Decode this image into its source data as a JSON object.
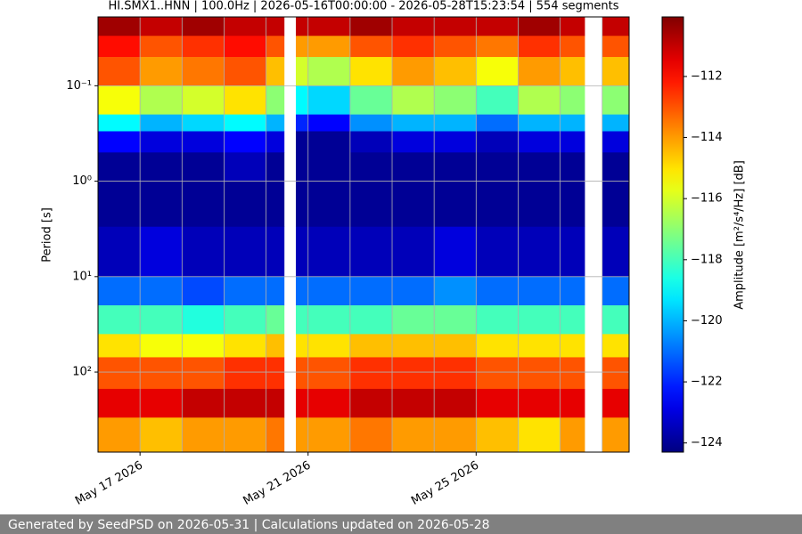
{
  "chart_data": {
    "type": "spectrogram",
    "title": "HI.SMX1..HNN | 100.0Hz | 2026-05-16T00:00:00 - 2026-05-28T15:23:54 | 554 segments",
    "ylabel": "Period [s]",
    "colorbar_label": "Amplitude [m²/s⁴/Hz] [dB]",
    "footer": "Generated by SeedPSD on 2026-05-31 | Calculations updated on 2026-05-28",
    "colormap": "jet",
    "x": [
      "2026-05-16T00:00:00",
      "2026-05-17T00:00:00",
      "2026-05-18T00:00:00",
      "2026-05-19T00:00:00",
      "2026-05-20T00:00:00",
      "2026-05-20T10:20:00",
      "2026-05-20T17:00:00",
      "2026-05-21T00:00:00",
      "2026-05-22T00:00:00",
      "2026-05-23T00:00:00",
      "2026-05-24T00:00:00",
      "2026-05-25T00:00:00",
      "2026-05-26T00:00:00",
      "2026-05-27T00:00:00",
      "2026-05-27T14:00:00",
      "2026-05-28T00:00:00"
    ],
    "y_edges": [
      0.019,
      0.03,
      0.05,
      0.1,
      0.2,
      0.3,
      0.5,
      1,
      3,
      10,
      20,
      40,
      70,
      150,
      300,
      690
    ],
    "values": [
      [
        -110.5,
        -112,
        -113,
        -115.5,
        -119,
        -122.5,
        -124,
        -124,
        -123.5,
        -121,
        -118,
        -115,
        -113,
        -111.5,
        -114
      ],
      [
        -111,
        -113,
        -114,
        -116.5,
        -120,
        -123,
        -124,
        -124,
        -123,
        -121,
        -118,
        -115.5,
        -113,
        -111.5,
        -114.5
      ],
      [
        -110.5,
        -112.5,
        -113.5,
        -116,
        -119.5,
        -123,
        -124,
        -124,
        -123.5,
        -121.5,
        -118.5,
        -115.5,
        -113,
        -111,
        -114
      ],
      [
        -111,
        -112,
        -113,
        -115,
        -119,
        -122.5,
        -123.5,
        -124,
        -123.5,
        -121,
        -118,
        -115,
        -112.5,
        -111,
        -114
      ],
      [
        -111,
        -113,
        -114.5,
        -117,
        -120,
        -123,
        -124,
        -124,
        -123.5,
        -121,
        -117.5,
        -114.5,
        -112.5,
        -111,
        -113.5
      ],
      null,
      [
        -111,
        -114,
        -116,
        -119,
        -122,
        -124,
        -124,
        -124,
        -123.5,
        -121,
        -118,
        -115,
        -113,
        -111.5,
        -114
      ],
      [
        -111,
        -114,
        -116.5,
        -119.5,
        -122.5,
        -124,
        -124,
        -124,
        -123.5,
        -121,
        -118,
        -115,
        -113,
        -111.5,
        -114
      ],
      [
        -110.5,
        -113,
        -115,
        -117.5,
        -120.5,
        -123.5,
        -124,
        -124,
        -123.5,
        -121,
        -118,
        -114.5,
        -112.5,
        -111,
        -113.5
      ],
      [
        -111,
        -112.5,
        -114,
        -116.5,
        -120,
        -123,
        -124,
        -124,
        -123.5,
        -121,
        -117.5,
        -114.5,
        -112.5,
        -111,
        -114
      ],
      [
        -111,
        -113,
        -114.5,
        -117,
        -120,
        -123,
        -124,
        -124,
        -123,
        -120.5,
        -117.5,
        -114.5,
        -112.5,
        -111,
        -114
      ],
      [
        -111,
        -113.5,
        -115.5,
        -118,
        -121,
        -123.5,
        -124,
        -124,
        -123.5,
        -121,
        -118,
        -115,
        -113,
        -111.5,
        -114.5
      ],
      [
        -110.5,
        -112.5,
        -114,
        -116.5,
        -120,
        -123,
        -124,
        -124,
        -123.5,
        -121,
        -118,
        -115,
        -113,
        -111.5,
        -115
      ],
      [
        -111,
        -113,
        -114.5,
        -117,
        -120,
        -123,
        -124,
        -124,
        -123.5,
        -121,
        -118,
        -115,
        -113,
        -111.5,
        -114
      ],
      null,
      [
        -111,
        -113,
        -114.5,
        -117,
        -120,
        -123,
        -124,
        -124,
        -123.5,
        -121,
        -118,
        -115,
        -113,
        -111.5,
        -114
      ]
    ],
    "xlim": [
      "2026-05-16T00:00:00",
      "2026-05-28T15:23:54"
    ],
    "xticks": [
      {
        "value": "2026-05-17T00:00:00",
        "label": "May 17 2026"
      },
      {
        "value": "2026-05-21T00:00:00",
        "label": "May 21 2026"
      },
      {
        "value": "2026-05-25T00:00:00",
        "label": "May 25 2026"
      }
    ],
    "xgrid": [
      "2026-05-17T00:00:00",
      "2026-05-18T00:00:00",
      "2026-05-19T00:00:00",
      "2026-05-20T00:00:00",
      "2026-05-21T00:00:00",
      "2026-05-22T00:00:00",
      "2026-05-23T00:00:00",
      "2026-05-24T00:00:00",
      "2026-05-25T00:00:00",
      "2026-05-26T00:00:00",
      "2026-05-27T00:00:00",
      "2026-05-28T00:00:00"
    ],
    "ylim": [
      0.019,
      690
    ],
    "ylog": true,
    "yinverted": true,
    "yticks": [
      {
        "value": 0.1,
        "label": "10⁻¹"
      },
      {
        "value": 1,
        "label": "10⁰"
      },
      {
        "value": 10,
        "label": "10¹"
      },
      {
        "value": 100,
        "label": "10²"
      }
    ],
    "grid": true,
    "clim": [
      -124.3,
      -110.05
    ],
    "cticks": [
      {
        "value": -124,
        "label": "−124"
      },
      {
        "value": -122,
        "label": "−122"
      },
      {
        "value": -120,
        "label": "−120"
      },
      {
        "value": -118,
        "label": "−118"
      },
      {
        "value": -116,
        "label": "−116"
      },
      {
        "value": -114,
        "label": "−114"
      },
      {
        "value": -112,
        "label": "−112"
      }
    ]
  }
}
